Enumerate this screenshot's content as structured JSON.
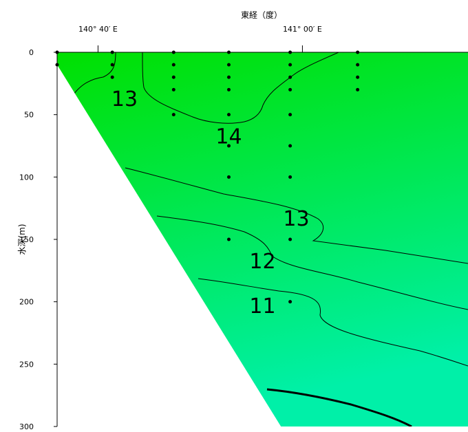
{
  "chart_data": {
    "type": "contour",
    "title": "",
    "x_axis": {
      "label": "東経（度）",
      "position": "top",
      "ticks": [
        {
          "label": "140° 40′ E",
          "value": 140.6667
        },
        {
          "label": "141° 00′ E",
          "value": 141.0
        }
      ]
    },
    "y_axis": {
      "label": "水深(m)",
      "range": [
        0,
        300
      ],
      "inverted": true,
      "ticks": [
        0,
        50,
        100,
        150,
        200,
        250,
        300
      ]
    },
    "x_range": [
      140.6,
      141.27
    ],
    "seafloor_profile": [
      {
        "x": 140.6,
        "depth": 10
      },
      {
        "x": 140.965,
        "depth": 300
      }
    ],
    "contour_labels": [
      {
        "text": "13",
        "x": 140.71,
        "depth": 37
      },
      {
        "text": "14",
        "x": 140.88,
        "depth": 67
      },
      {
        "text": "13",
        "x": 140.99,
        "depth": 133
      },
      {
        "text": "12",
        "x": 140.935,
        "depth": 167
      },
      {
        "text": "11",
        "x": 140.935,
        "depth": 203
      }
    ],
    "sample_points": [
      {
        "x": 140.6,
        "depths": [
          0,
          10
        ]
      },
      {
        "x": 140.69,
        "depths": [
          0,
          10,
          20
        ]
      },
      {
        "x": 140.79,
        "depths": [
          0,
          10,
          20,
          30,
          50
        ]
      },
      {
        "x": 140.88,
        "depths": [
          0,
          10,
          20,
          30,
          50,
          75,
          100,
          150
        ]
      },
      {
        "x": 140.98,
        "depths": [
          0,
          10,
          20,
          30,
          50,
          75,
          100,
          150,
          200
        ]
      },
      {
        "x": 141.09,
        "depths": [
          0,
          10,
          20,
          30
        ]
      }
    ],
    "grid": false,
    "colors": {
      "shallow": "#00e000",
      "deep": "#00f0a8",
      "contour": "#000000",
      "points": "#000000"
    }
  }
}
